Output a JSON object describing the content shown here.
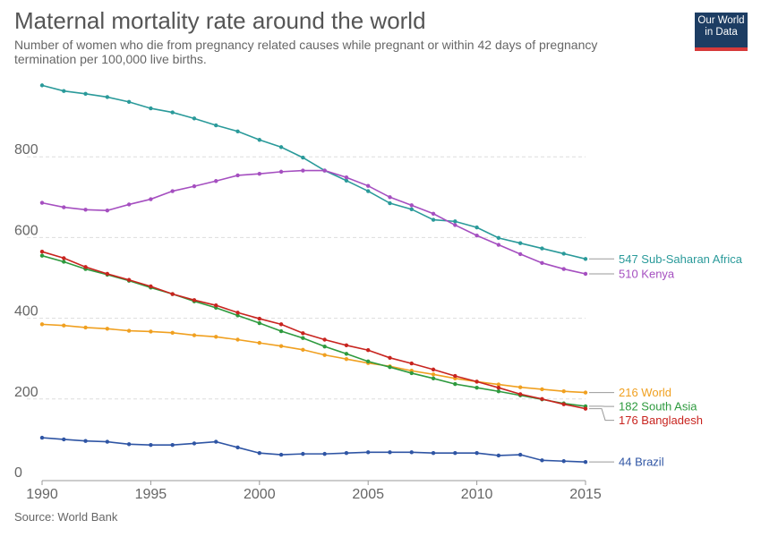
{
  "header": {
    "title": "Maternal mortality rate around the world",
    "subtitle": "Number of women who die from pregnancy related causes while pregnant or within 42 days of pregnancy termination per 100,000 live births."
  },
  "logo": {
    "line1": "Our World",
    "line2": "in Data",
    "bg_color": "#1d3d63",
    "accent_color": "#d73a3a"
  },
  "footer": {
    "source": "Source: World Bank"
  },
  "chart_data": {
    "type": "line",
    "x": [
      1990,
      1991,
      1992,
      1993,
      1994,
      1995,
      1996,
      1997,
      1998,
      1999,
      2000,
      2001,
      2002,
      2003,
      2004,
      2005,
      2006,
      2007,
      2008,
      2009,
      2010,
      2011,
      2012,
      2013,
      2014,
      2015
    ],
    "xlim": [
      1990,
      2015
    ],
    "ylim": [
      0,
      1000
    ],
    "xticks": [
      1990,
      1995,
      2000,
      2005,
      2010,
      2015
    ],
    "yticks": [
      0,
      200,
      400,
      600,
      800
    ],
    "grid": "horizontal dashed",
    "legend": "right, end-of-line labels",
    "series": [
      {
        "name": "Sub-Saharan Africa",
        "label": "547 Sub-Saharan Africa",
        "color": "#2a9a9a",
        "values": [
          977,
          963,
          956,
          948,
          936,
          920,
          910,
          895,
          878,
          863,
          842,
          824,
          798,
          766,
          741,
          715,
          685,
          670,
          644,
          640,
          625,
          599,
          586,
          573,
          560,
          547
        ]
      },
      {
        "name": "Kenya",
        "label": "510 Kenya",
        "color": "#a54fc0",
        "values": [
          686,
          675,
          669,
          667,
          682,
          695,
          715,
          727,
          740,
          754,
          758,
          763,
          766,
          766,
          749,
          728,
          700,
          680,
          659,
          631,
          605,
          582,
          559,
          537,
          522,
          510
        ]
      },
      {
        "name": "World",
        "label": "216 World",
        "color": "#f0a020",
        "values": [
          385,
          382,
          377,
          374,
          369,
          367,
          364,
          358,
          354,
          347,
          339,
          331,
          322,
          309,
          299,
          289,
          281,
          270,
          261,
          251,
          243,
          236,
          229,
          224,
          219,
          216
        ]
      },
      {
        "name": "South Asia",
        "label": "182 South Asia",
        "color": "#2e9a3e",
        "values": [
          555,
          540,
          522,
          508,
          493,
          476,
          460,
          442,
          426,
          407,
          388,
          368,
          351,
          330,
          312,
          293,
          279,
          264,
          251,
          237,
          228,
          219,
          209,
          199,
          189,
          182
        ]
      },
      {
        "name": "Bangladesh",
        "label": "176 Bangladesh",
        "color": "#c8241f",
        "values": [
          565,
          549,
          527,
          510,
          495,
          479,
          460,
          445,
          432,
          414,
          399,
          385,
          363,
          347,
          333,
          321,
          302,
          288,
          273,
          257,
          243,
          228,
          212,
          200,
          187,
          176
        ]
      },
      {
        "name": "Brazil",
        "label": "44 Brazil",
        "color": "#2f55a4",
        "values": [
          104,
          100,
          96,
          94,
          88,
          86,
          86,
          90,
          94,
          80,
          66,
          62,
          64,
          64,
          66,
          68,
          68,
          68,
          66,
          66,
          66,
          60,
          62,
          48,
          46,
          44
        ]
      }
    ]
  }
}
